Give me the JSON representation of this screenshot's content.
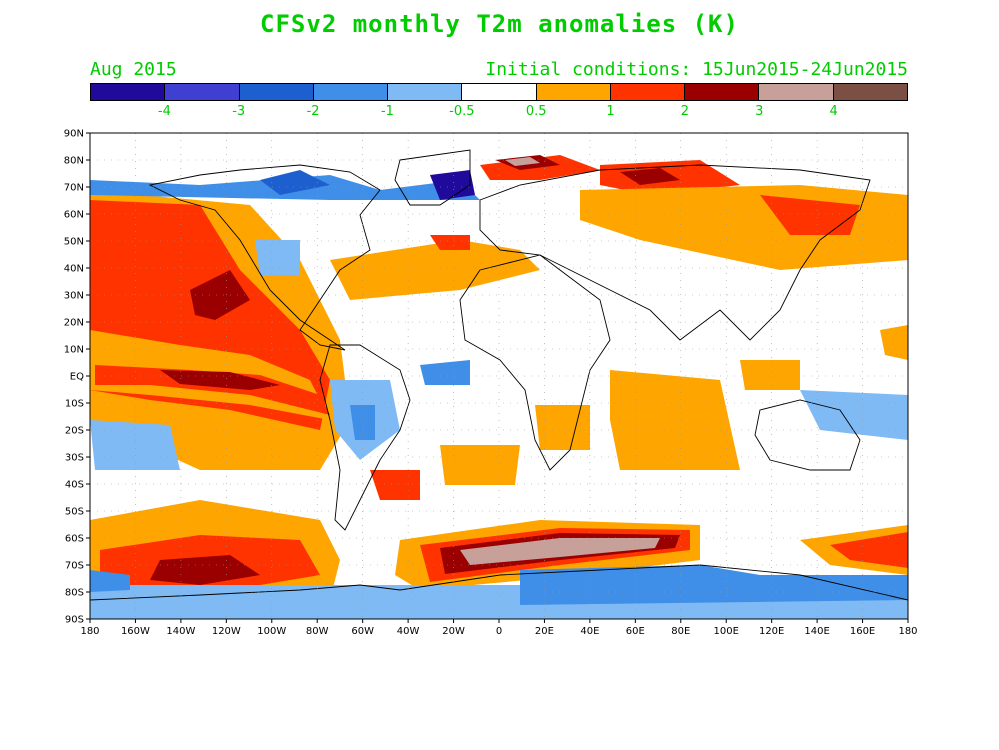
{
  "title": "CFSv2 monthly T2m anomalies (K)",
  "valid_month": "Aug 2015",
  "initial_conditions": "Initial conditions: 15Jun2015-24Jun2015",
  "colorbar": {
    "colors": [
      "#1f0a9c",
      "#3f3fd1",
      "#1e5fd0",
      "#3f8fe8",
      "#7fbaf5",
      "#ffffff",
      "#ffa500",
      "#ff3300",
      "#9b0000",
      "#c8a09a",
      "#7b4f43"
    ],
    "labels": [
      "-4",
      "-3",
      "-2",
      "-1",
      "-0.5",
      "0.5",
      "1",
      "2",
      "3",
      "4"
    ]
  },
  "lat_labels": [
    "90N",
    "80N",
    "70N",
    "60N",
    "50N",
    "40N",
    "30N",
    "20N",
    "10N",
    "EQ",
    "10S",
    "20S",
    "30S",
    "40S",
    "50S",
    "60S",
    "70S",
    "80S",
    "90S"
  ],
  "lon_labels": [
    "180",
    "160W",
    "140W",
    "120W",
    "100W",
    "80W",
    "60W",
    "40W",
    "20W",
    "0",
    "20E",
    "40E",
    "60E",
    "80E",
    "100E",
    "120E",
    "140E",
    "160E",
    "180"
  ]
}
